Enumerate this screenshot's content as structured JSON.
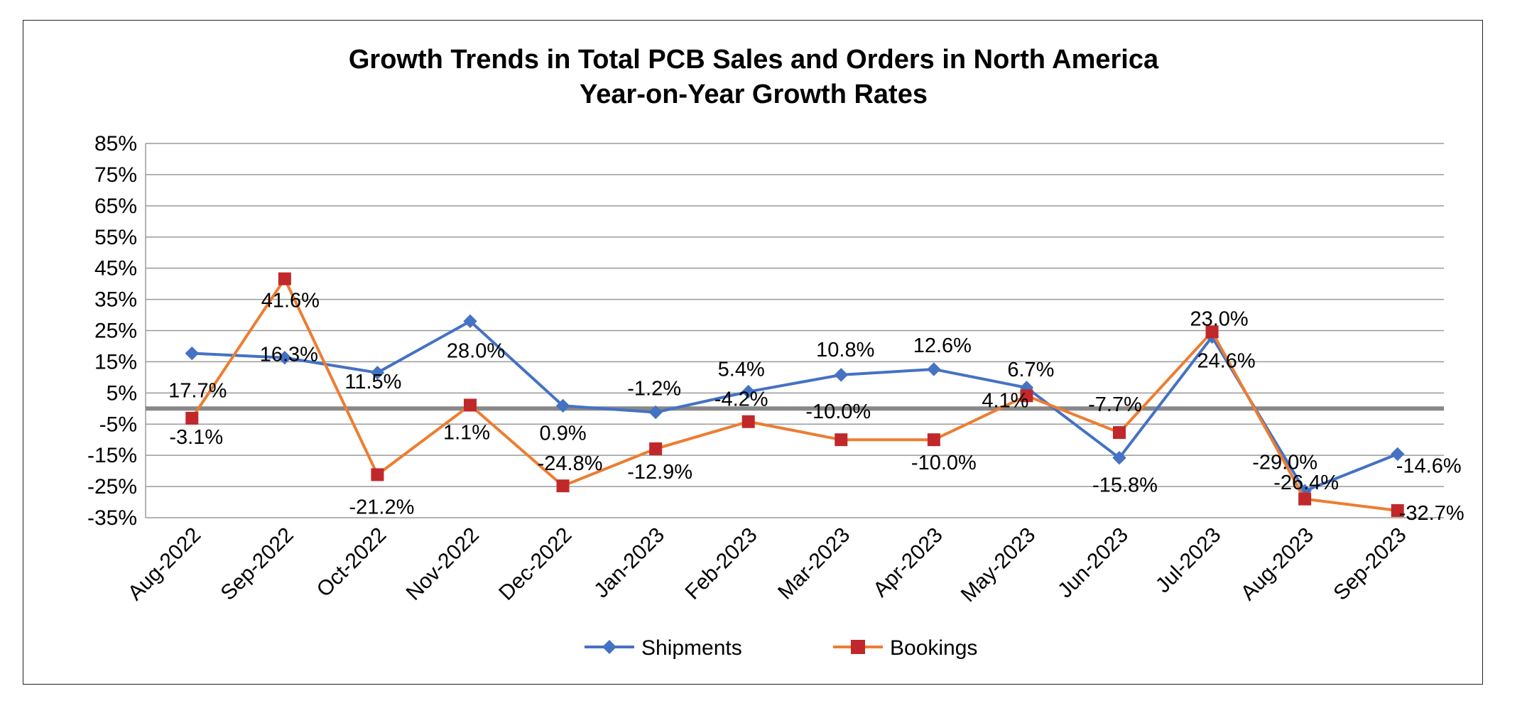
{
  "chart_data": {
    "type": "line",
    "title": "Growth Trends in Total PCB Sales and Orders in North America",
    "subtitle": "Year-on-Year Growth Rates",
    "categories": [
      "Aug-2022",
      "Sep-2022",
      "Oct-2022",
      "Nov-2022",
      "Dec-2022",
      "Jan-2023",
      "Feb-2023",
      "Mar-2023",
      "Apr-2023",
      "May-2023",
      "Jun-2023",
      "Jul-2023",
      "Aug-2023",
      "Sep-2023"
    ],
    "y_ticks": [
      "85%",
      "75%",
      "65%",
      "55%",
      "45%",
      "35%",
      "25%",
      "15%",
      "5%",
      "-5%",
      "-15%",
      "-25%",
      "-35%"
    ],
    "ylim": [
      -35,
      85
    ],
    "y_step": 10,
    "grid": true,
    "legend_position": "bottom",
    "series": [
      {
        "name": "Shipments",
        "color": "#4472C4",
        "marker": "diamond",
        "values": [
          17.7,
          16.3,
          11.5,
          28.0,
          0.9,
          -1.2,
          5.4,
          10.8,
          12.6,
          6.7,
          -15.8,
          23.0,
          -26.4,
          -14.6
        ],
        "labels": [
          "17.7%",
          "16.3%",
          "11.5%",
          "28.0%",
          "0.9%",
          "-1.2%",
          "5.4%",
          "10.8%",
          "12.6%",
          "6.7%",
          "-15.8%",
          "23.0%",
          "-26.4%",
          "-14.6%"
        ]
      },
      {
        "name": "Bookings",
        "color": "#ED7D31",
        "marker_color": "#C0282B",
        "marker": "square",
        "values": [
          -3.1,
          41.6,
          -21.2,
          1.1,
          -24.8,
          -12.9,
          -4.2,
          -10.0,
          -10.0,
          4.1,
          -7.7,
          24.6,
          -29.0,
          -32.7
        ],
        "labels": [
          "-3.1%",
          "41.6%",
          "-21.2%",
          "1.1%",
          "-24.8%",
          "-12.9%",
          "-4.2%",
          "-10.0%",
          "-10.0%",
          "4.1%",
          "-7.7%",
          "24.6%",
          "-29.0%",
          "-32.7%"
        ]
      }
    ]
  }
}
